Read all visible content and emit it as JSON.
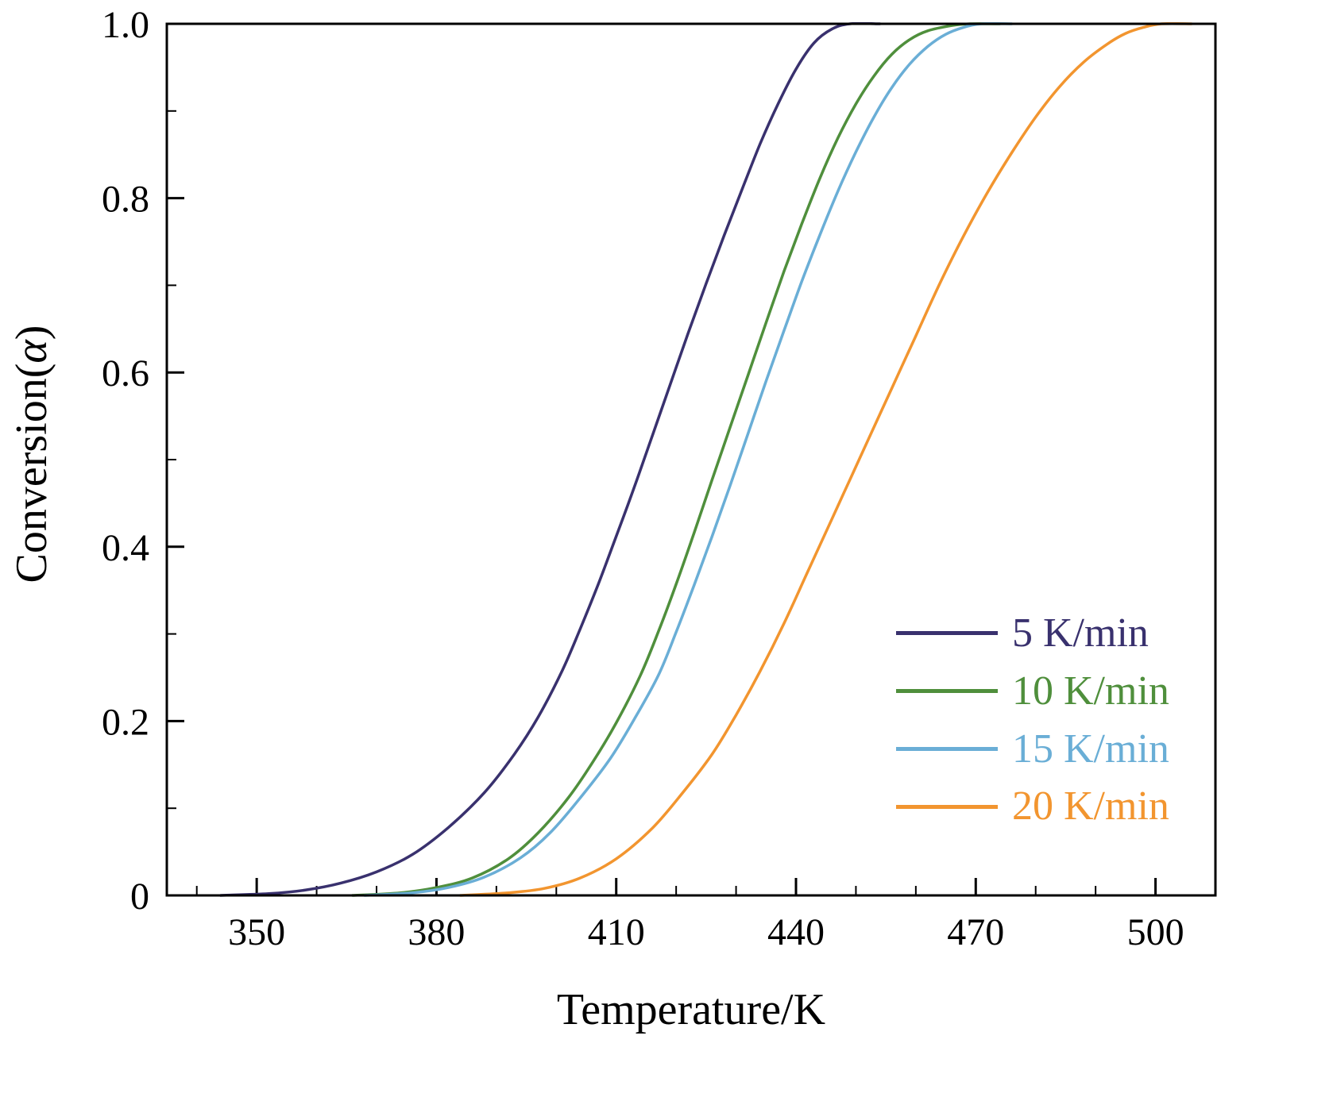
{
  "labels": {
    "ylabel_prefix": "Conversion(",
    "alpha": "α",
    "ylabel_suffix": ")"
  },
  "colors": {
    "background": "#ffffff",
    "axis": "#000000",
    "text": "#000000"
  },
  "chart_data": {
    "type": "line",
    "title": "",
    "xlabel": "Temperature/K",
    "ylabel": "Conversion(α)",
    "xlim": [
      335,
      510
    ],
    "ylim": [
      0,
      1.0
    ],
    "x_ticks": [
      350,
      380,
      410,
      440,
      470,
      500
    ],
    "x_tick_labels": [
      "350",
      "380",
      "410",
      "440",
      "470",
      "500"
    ],
    "y_ticks": [
      0,
      0.2,
      0.4,
      0.6,
      0.8,
      1.0
    ],
    "y_tick_labels": [
      "0",
      "0.2",
      "0.4",
      "0.6",
      "0.8",
      "1.0"
    ],
    "grid": false,
    "legend_position": "lower right",
    "series": [
      {
        "name": "5 K/min",
        "color": "#39316e",
        "points": [
          [
            344,
            0
          ],
          [
            352,
            0.002
          ],
          [
            358,
            0.006
          ],
          [
            364,
            0.014
          ],
          [
            370,
            0.027
          ],
          [
            376,
            0.047
          ],
          [
            382,
            0.078
          ],
          [
            388,
            0.118
          ],
          [
            393,
            0.162
          ],
          [
            397,
            0.205
          ],
          [
            401,
            0.258
          ],
          [
            404,
            0.306
          ],
          [
            407,
            0.357
          ],
          [
            410,
            0.412
          ],
          [
            413,
            0.468
          ],
          [
            416,
            0.527
          ],
          [
            419,
            0.586
          ],
          [
            422,
            0.645
          ],
          [
            425,
            0.702
          ],
          [
            428,
            0.757
          ],
          [
            431,
            0.81
          ],
          [
            434,
            0.862
          ],
          [
            437,
            0.908
          ],
          [
            440,
            0.948
          ],
          [
            443,
            0.978
          ],
          [
            446,
            0.994
          ],
          [
            449,
            1.0
          ],
          [
            454,
            1.0
          ]
        ]
      },
      {
        "name": "10 K/min",
        "color": "#4f8f3c",
        "points": [
          [
            366,
            0
          ],
          [
            374,
            0.003
          ],
          [
            380,
            0.009
          ],
          [
            386,
            0.02
          ],
          [
            392,
            0.042
          ],
          [
            397,
            0.072
          ],
          [
            402,
            0.112
          ],
          [
            406,
            0.152
          ],
          [
            410,
            0.198
          ],
          [
            414,
            0.252
          ],
          [
            417,
            0.302
          ],
          [
            420,
            0.357
          ],
          [
            423,
            0.416
          ],
          [
            426,
            0.477
          ],
          [
            429,
            0.537
          ],
          [
            432,
            0.597
          ],
          [
            435,
            0.657
          ],
          [
            438,
            0.716
          ],
          [
            441,
            0.771
          ],
          [
            444,
            0.823
          ],
          [
            447,
            0.869
          ],
          [
            450,
            0.908
          ],
          [
            453,
            0.94
          ],
          [
            456,
            0.965
          ],
          [
            459,
            0.982
          ],
          [
            462,
            0.992
          ],
          [
            466,
            0.998
          ],
          [
            469,
            1.0
          ],
          [
            474,
            1.0
          ]
        ]
      },
      {
        "name": "15 K/min",
        "color": "#6aaed6",
        "points": [
          [
            368,
            0
          ],
          [
            376,
            0.003
          ],
          [
            382,
            0.009
          ],
          [
            388,
            0.021
          ],
          [
            394,
            0.043
          ],
          [
            399,
            0.072
          ],
          [
            404,
            0.112
          ],
          [
            409,
            0.157
          ],
          [
            413,
            0.202
          ],
          [
            417,
            0.252
          ],
          [
            420,
            0.302
          ],
          [
            423,
            0.356
          ],
          [
            426,
            0.412
          ],
          [
            429,
            0.47
          ],
          [
            432,
            0.53
          ],
          [
            435,
            0.59
          ],
          [
            438,
            0.648
          ],
          [
            441,
            0.705
          ],
          [
            444,
            0.758
          ],
          [
            447,
            0.808
          ],
          [
            450,
            0.853
          ],
          [
            453,
            0.893
          ],
          [
            456,
            0.927
          ],
          [
            459,
            0.954
          ],
          [
            462,
            0.974
          ],
          [
            465,
            0.988
          ],
          [
            468,
            0.996
          ],
          [
            471,
            1.0
          ],
          [
            476,
            1.0
          ]
        ]
      },
      {
        "name": "20 K/min",
        "color": "#f2952f",
        "points": [
          [
            384,
            0
          ],
          [
            392,
            0.003
          ],
          [
            398,
            0.008
          ],
          [
            404,
            0.02
          ],
          [
            410,
            0.042
          ],
          [
            416,
            0.077
          ],
          [
            421,
            0.117
          ],
          [
            426,
            0.162
          ],
          [
            430,
            0.207
          ],
          [
            434,
            0.257
          ],
          [
            438,
            0.312
          ],
          [
            442,
            0.372
          ],
          [
            446,
            0.432
          ],
          [
            449,
            0.477
          ],
          [
            452,
            0.522
          ],
          [
            456,
            0.582
          ],
          [
            460,
            0.642
          ],
          [
            464,
            0.702
          ],
          [
            468,
            0.757
          ],
          [
            472,
            0.807
          ],
          [
            476,
            0.852
          ],
          [
            480,
            0.893
          ],
          [
            484,
            0.928
          ],
          [
            488,
            0.956
          ],
          [
            492,
            0.977
          ],
          [
            495,
            0.989
          ],
          [
            498,
            0.996
          ],
          [
            501,
            1.0
          ],
          [
            506,
            1.0
          ]
        ]
      }
    ]
  }
}
